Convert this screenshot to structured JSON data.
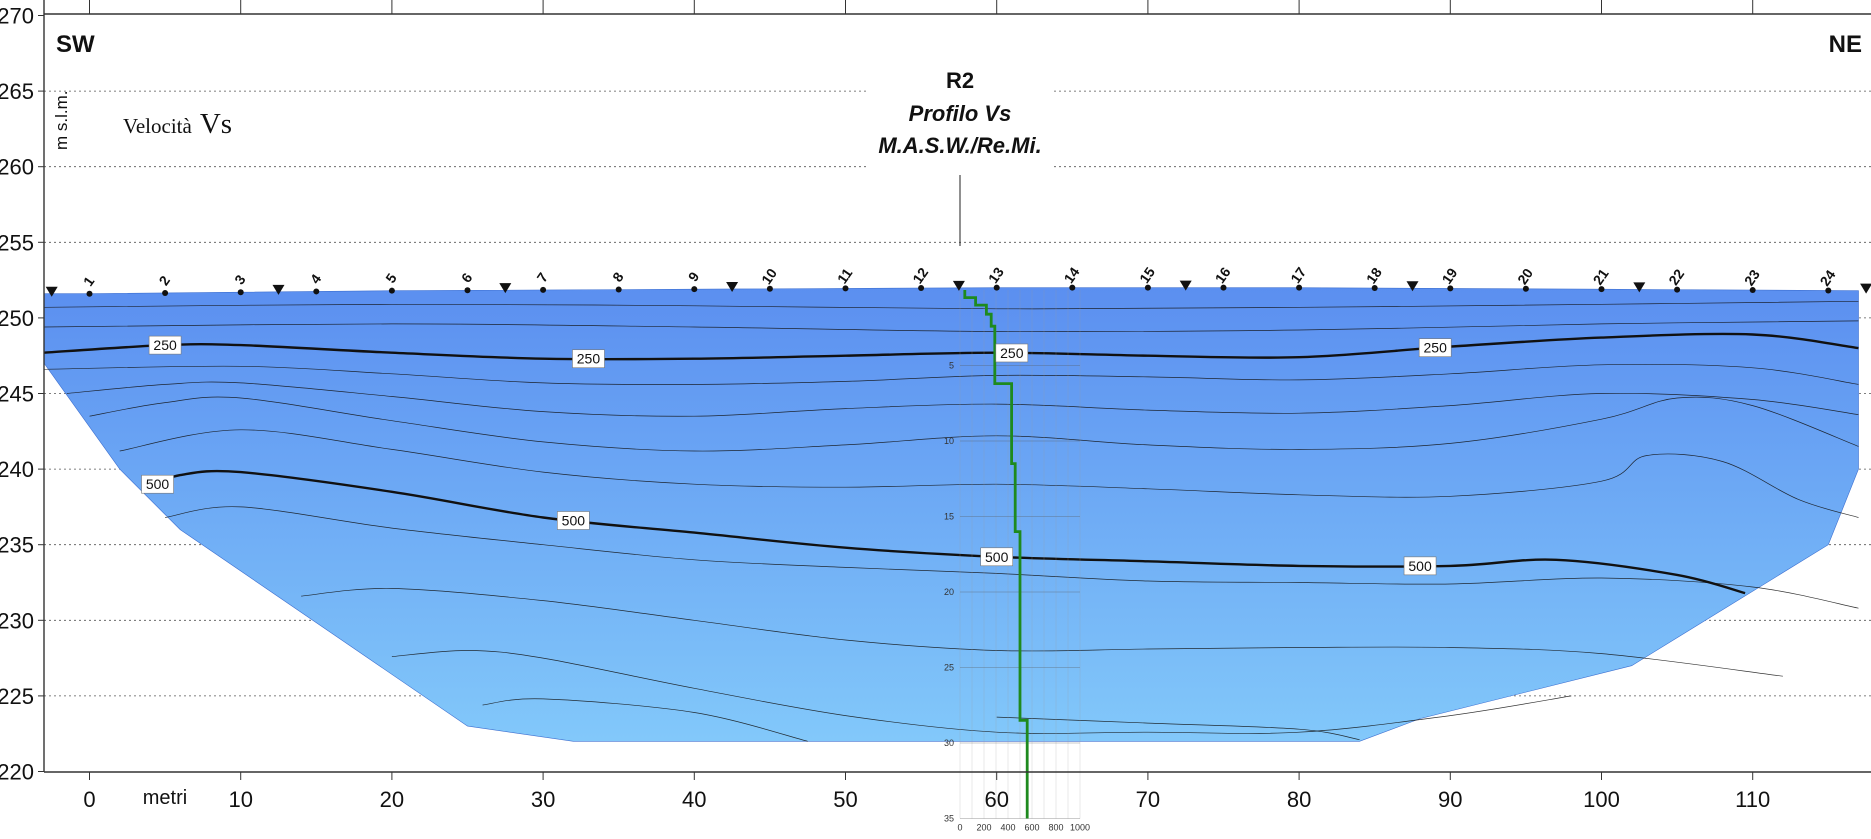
{
  "chart_data": {
    "type": "heatmap",
    "subtype": "seismic velocity cross-section (contour plot)",
    "title_lines": [
      "R2",
      "Profilo Vs",
      "M.A.S.W./Re.Mi."
    ],
    "side_left": "SW",
    "side_right": "NE",
    "legend_title_prefix": "Velocità",
    "legend_title_var": "Vs",
    "xlabel": "metri",
    "ylabel": "m s.l.m.",
    "xlim": [
      -3,
      117
    ],
    "ylim": [
      220,
      270
    ],
    "x_ticks": [
      0,
      10,
      20,
      30,
      40,
      50,
      60,
      70,
      80,
      90,
      100,
      110
    ],
    "y_ticks": [
      220,
      225,
      230,
      235,
      240,
      245,
      250,
      255,
      260,
      265,
      270
    ],
    "y_tick_labels": [
      "220",
      "225",
      "230",
      "235",
      "240",
      "245",
      "250",
      "255",
      "260",
      "265",
      "270"
    ],
    "grid": "horizontal dotted",
    "colors": {
      "top": "#5b8ff0",
      "bottom": "#82c8fa",
      "profile_line": "#1e8a1e",
      "contour": "#111111"
    },
    "surface": {
      "x": [
        -3,
        0,
        20,
        40,
        60,
        80,
        100,
        117
      ],
      "y": [
        251.6,
        251.6,
        251.8,
        251.9,
        252.0,
        252.0,
        251.9,
        251.8
      ]
    },
    "section_outline": {
      "x": [
        -3,
        2,
        6,
        25,
        32,
        47,
        84,
        88,
        102,
        115,
        117
      ],
      "y": [
        247,
        240,
        236,
        223,
        222,
        222,
        222,
        223.5,
        227,
        235,
        240
      ]
    },
    "geophones": [
      "1",
      "2",
      "3",
      "4",
      "5",
      "6",
      "7",
      "8",
      "9",
      "10",
      "11",
      "12",
      "13",
      "14",
      "15",
      "16",
      "17",
      "18",
      "19",
      "20",
      "21",
      "22",
      "23",
      "24"
    ],
    "geophone_x": [
      0,
      5,
      10,
      15,
      20,
      25,
      30,
      35,
      40,
      45,
      50,
      55,
      60,
      65,
      70,
      75,
      80,
      85,
      90,
      95,
      100,
      105,
      110,
      115
    ],
    "shots_x": [
      -2.5,
      12.5,
      27.5,
      42.5,
      57.5,
      72.5,
      87.5,
      102.5,
      117.5
    ],
    "contours": [
      {
        "value": 250,
        "major": true,
        "x": [
          -3,
          5,
          10,
          20,
          30,
          40,
          50,
          60,
          70,
          80,
          90,
          100,
          110,
          117
        ],
        "y": [
          247.7,
          248.2,
          248.2,
          247.7,
          247.3,
          247.3,
          247.5,
          247.7,
          247.5,
          247.4,
          248.1,
          248.7,
          248.9,
          248.0
        ],
        "labels": [
          {
            "x": 5,
            "text": "250"
          },
          {
            "x": 33,
            "text": "250"
          },
          {
            "x": 61,
            "text": "250"
          },
          {
            "x": 89,
            "text": "250"
          }
        ]
      },
      {
        "value": 500,
        "major": true,
        "x": [
          4,
          6,
          10,
          20,
          30,
          40,
          50,
          60,
          70,
          80,
          90,
          97,
          105,
          109.5
        ],
        "y": [
          238.8,
          239.6,
          239.8,
          238.5,
          236.8,
          235.8,
          234.8,
          234.2,
          233.9,
          233.6,
          233.6,
          234.0,
          233.0,
          231.8
        ],
        "labels": [
          {
            "x": 4.5,
            "text": "500"
          },
          {
            "x": 32,
            "text": "500"
          },
          {
            "x": 60,
            "text": "500"
          },
          {
            "x": 88,
            "text": "500"
          }
        ]
      }
    ],
    "minor_contours": [
      {
        "x": [
          -3,
          20,
          40,
          60,
          80,
          100,
          117
        ],
        "y": [
          250.7,
          250.9,
          250.8,
          250.6,
          250.7,
          250.9,
          251.1
        ]
      },
      {
        "x": [
          -3,
          20,
          40,
          60,
          80,
          100,
          117
        ],
        "y": [
          249.4,
          249.6,
          249.4,
          249.1,
          249.2,
          249.6,
          249.8
        ]
      },
      {
        "x": [
          -3,
          10,
          20,
          30,
          40,
          50,
          60,
          70,
          80,
          90,
          100,
          110,
          117
        ],
        "y": [
          246.6,
          246.8,
          246.3,
          245.7,
          245.6,
          245.8,
          246.2,
          246.1,
          245.9,
          246.3,
          246.9,
          246.7,
          245.6
        ]
      },
      {
        "x": [
          -1.5,
          5,
          10,
          20,
          30,
          40,
          50,
          60,
          70,
          80,
          90,
          100,
          110,
          117
        ],
        "y": [
          245.0,
          245.6,
          245.7,
          244.8,
          243.8,
          243.5,
          244.0,
          244.3,
          243.9,
          243.7,
          244.2,
          245.0,
          244.6,
          243.6
        ]
      },
      {
        "x": [
          0,
          5,
          10,
          20,
          30,
          40,
          50,
          60,
          70,
          80,
          90,
          100,
          105,
          110,
          117
        ],
        "y": [
          243.5,
          244.4,
          244.7,
          243.2,
          241.8,
          241.2,
          241.6,
          242.2,
          241.6,
          241.3,
          241.7,
          243.3,
          244.7,
          244.2,
          241.5
        ]
      },
      {
        "x": [
          2,
          10,
          20,
          30,
          40,
          50,
          60,
          70,
          80,
          90,
          100,
          103,
          108,
          113,
          117
        ],
        "y": [
          241.2,
          242.6,
          241.3,
          239.8,
          239.0,
          238.8,
          239.0,
          238.7,
          238.3,
          238.2,
          239.2,
          240.9,
          240.5,
          238.0,
          236.8
        ]
      },
      {
        "x": [
          5,
          10,
          20,
          30,
          40,
          50,
          60,
          70,
          80,
          90,
          100,
          110,
          117
        ],
        "y": [
          236.8,
          237.5,
          236.1,
          235.0,
          234.0,
          233.5,
          233.1,
          232.6,
          232.5,
          232.4,
          232.8,
          232.2,
          230.8
        ]
      },
      {
        "x": [
          14,
          20,
          30,
          40,
          50,
          60,
          70,
          80,
          90,
          100,
          112
        ],
        "y": [
          231.6,
          232.1,
          231.3,
          230.0,
          228.7,
          228.0,
          228.1,
          228.2,
          228.2,
          227.8,
          226.3
        ]
      },
      {
        "x": [
          20,
          25,
          30,
          40,
          50,
          60,
          70,
          80,
          90,
          98
        ],
        "y": [
          227.6,
          228.0,
          227.5,
          225.5,
          223.7,
          222.6,
          222.6,
          222.6,
          223.7,
          225.0
        ]
      },
      {
        "x": [
          26,
          30,
          40,
          47.5
        ],
        "y": [
          224.4,
          224.8,
          223.9,
          222.0
        ]
      },
      {
        "x": [
          60,
          70,
          80,
          84
        ],
        "y": [
          223.6,
          223.2,
          222.8,
          222.1
        ]
      }
    ],
    "inset_profile": {
      "xlabel_ticks": [
        "0",
        "200",
        "400",
        "600",
        "800",
        "1000"
      ],
      "xlim": [
        0,
        1000
      ],
      "depth_ticks": [
        "5",
        "10",
        "15",
        "20",
        "25",
        "30",
        "35"
      ],
      "depth_max": 35,
      "vs_steps": [
        {
          "vs": 40,
          "d": [
            0,
            0.5
          ]
        },
        {
          "vs": 130,
          "d": [
            0.5,
            1.0
          ]
        },
        {
          "vs": 220,
          "d": [
            1.0,
            1.6
          ]
        },
        {
          "vs": 260,
          "d": [
            1.6,
            2.4
          ]
        },
        {
          "vs": 290,
          "d": [
            2.4,
            6.2
          ]
        },
        {
          "vs": 430,
          "d": [
            6.2,
            11.5
          ]
        },
        {
          "vs": 460,
          "d": [
            11.5,
            16.0
          ]
        },
        {
          "vs": 500,
          "d": [
            16.0,
            28.5
          ]
        },
        {
          "vs": 560,
          "d": [
            28.5,
            35
          ]
        }
      ]
    }
  }
}
